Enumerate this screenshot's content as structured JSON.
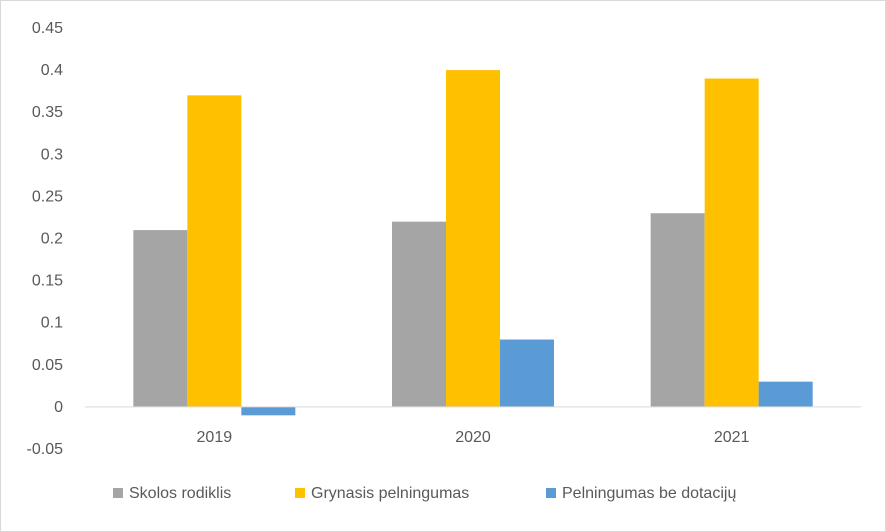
{
  "chart_data": {
    "type": "bar",
    "title": "",
    "xlabel": "",
    "ylabel": "",
    "categories": [
      "2019",
      "2020",
      "2021"
    ],
    "series": [
      {
        "name": "Skolos rodiklis",
        "color": "#a5a5a5",
        "values": [
          0.21,
          0.22,
          0.23
        ]
      },
      {
        "name": "Grynasis pelningumas",
        "color": "#ffc000",
        "values": [
          0.37,
          0.4,
          0.39
        ]
      },
      {
        "name": "Pelningumas be dotacijų",
        "color": "#5b9bd5",
        "values": [
          -0.01,
          0.08,
          0.03
        ]
      }
    ],
    "ylim": [
      -0.05,
      0.45
    ],
    "yticks": [
      "0.45",
      "0.4",
      "0.35",
      "0.3",
      "0.25",
      "0.2",
      "0.15",
      "0.1",
      "0.05",
      "0",
      "-0.05"
    ],
    "grid": false,
    "legend": "bottom"
  }
}
